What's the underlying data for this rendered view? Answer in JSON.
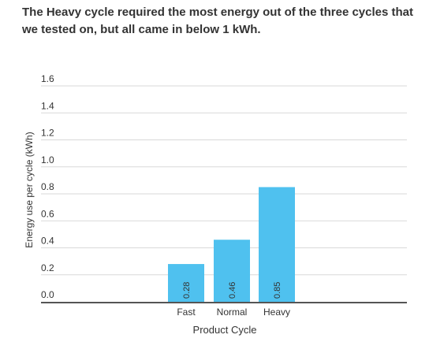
{
  "title": "The Heavy cycle required the most energy out of the three cycles that we tested on, but all came in below 1 kWh.",
  "chart_data": {
    "type": "bar",
    "title": "",
    "xlabel": "Product Cycle",
    "ylabel": "Energy use per cycle (kWh)",
    "categories": [
      "Fast",
      "Normal",
      "Heavy"
    ],
    "values": [
      0.28,
      0.46,
      0.85
    ],
    "data_labels": [
      "0.28",
      "0.46",
      "0.85"
    ],
    "ylim": [
      0,
      1.6
    ],
    "yticks": [
      "0.0",
      "0.2",
      "0.4",
      "0.6",
      "0.8",
      "1.0",
      "1.2",
      "1.4",
      "1.6"
    ],
    "grid": true,
    "legend": "none",
    "bar_color": "#4fc1ef",
    "gridline_color": "#d9d9d9",
    "baseline_color": "#555555",
    "text_color": "#333333"
  }
}
